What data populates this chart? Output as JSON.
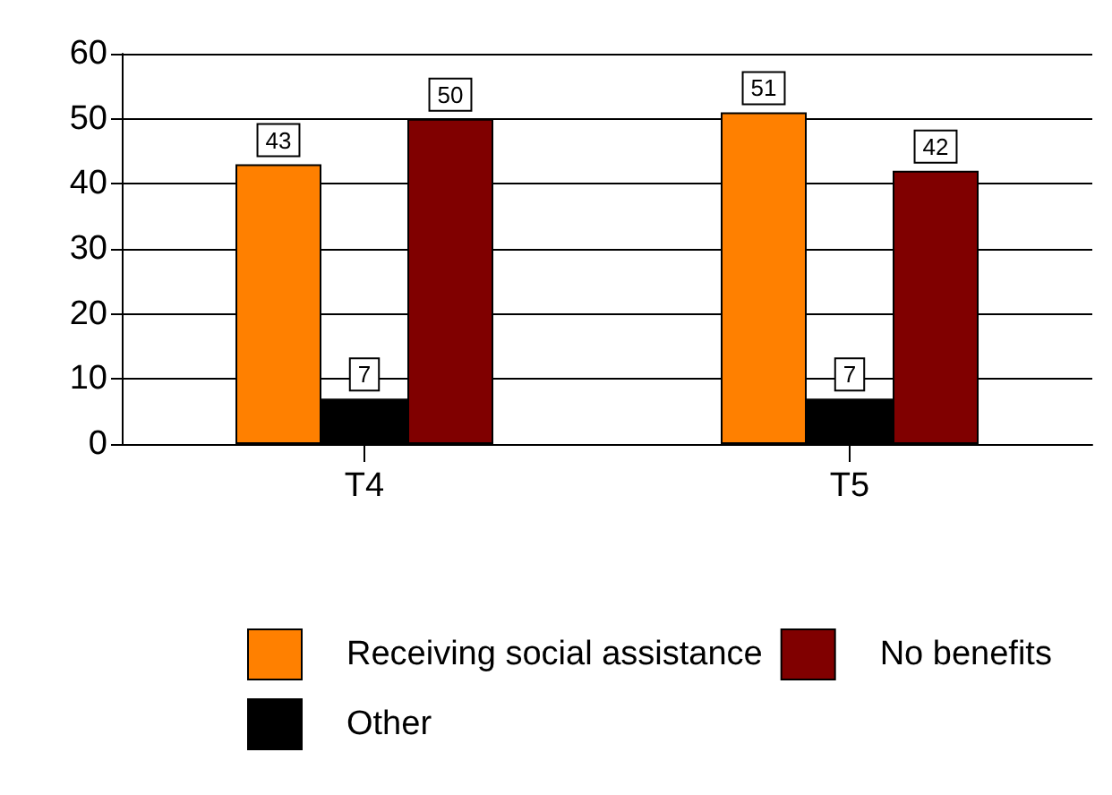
{
  "chart_data": {
    "type": "bar",
    "categories": [
      "T4",
      "T5"
    ],
    "series": [
      {
        "name": "Receiving social assistance",
        "color": "#ff8000",
        "values": [
          43,
          51
        ]
      },
      {
        "name": "Other",
        "color": "#000000",
        "values": [
          7,
          7
        ]
      },
      {
        "name": "No benefits",
        "color": "#800000",
        "values": [
          50,
          42
        ]
      }
    ],
    "ylim": [
      0,
      60
    ],
    "yticks": [
      0,
      10,
      20,
      30,
      40,
      50,
      60
    ],
    "grid": "y",
    "legend": "bottom",
    "data_labels": true
  }
}
